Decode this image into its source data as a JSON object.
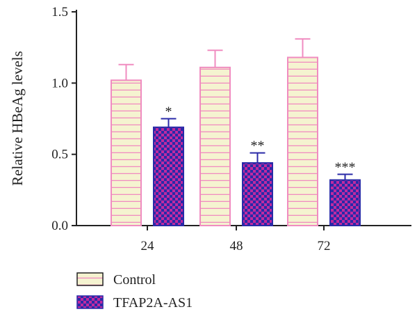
{
  "chart_data": {
    "type": "bar",
    "ylabel": "Relative HBeAg levels",
    "xlabel": "",
    "categories": [
      "24",
      "48",
      "72"
    ],
    "ylim": [
      0,
      1.5
    ],
    "yticks": [
      "0.0",
      "0.5",
      "1.0",
      "1.5"
    ],
    "series": [
      {
        "name": "Control",
        "values": [
          1.02,
          1.11,
          1.18
        ],
        "errors": [
          0.11,
          0.12,
          0.13
        ],
        "significance": [
          "",
          "",
          ""
        ],
        "fill": "#f5f3d0",
        "stroke": "#f08cc0"
      },
      {
        "name": "TFAP2A-AS1",
        "values": [
          0.69,
          0.44,
          0.32
        ],
        "errors": [
          0.06,
          0.07,
          0.04
        ],
        "significance": [
          "*",
          "**",
          "***"
        ],
        "fill": "#b02ab0",
        "stroke": "#2a2aa8"
      }
    ],
    "grid": false,
    "legend_position": "bottom-left"
  }
}
